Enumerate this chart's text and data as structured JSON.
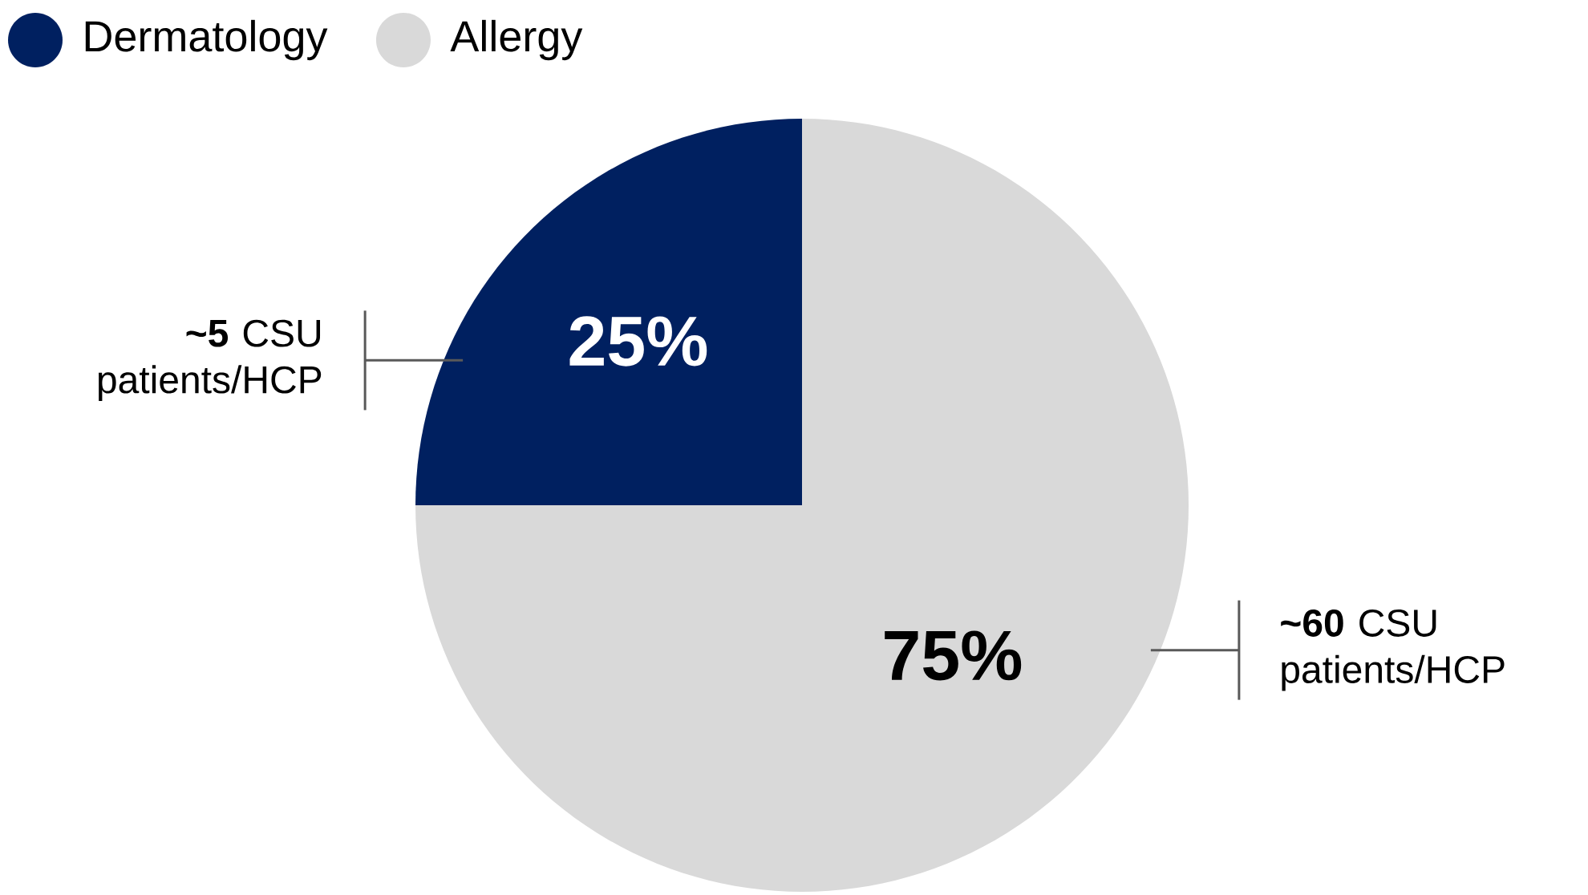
{
  "chart_data": {
    "type": "pie",
    "categories": [
      "Dermatology",
      "Allergy"
    ],
    "values": [
      25,
      75
    ],
    "colors": [
      "#002060",
      "#d9d9d9"
    ],
    "value_labels": [
      "25%",
      "75%"
    ],
    "legend": "top left",
    "annotations": [
      "**~5** CSU patients/HCP",
      "**~60** CSU patients/HCP"
    ]
  }
}
